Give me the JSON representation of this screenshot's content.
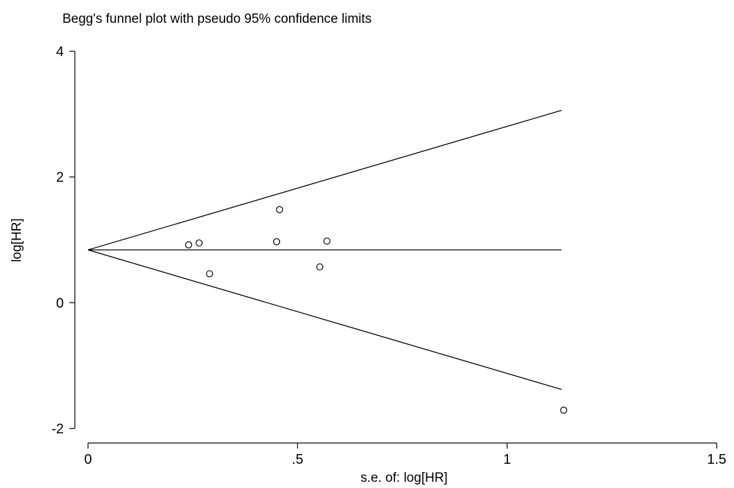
{
  "chart_data": {
    "type": "scatter",
    "title": "Begg's funnel plot with pseudo 95% confidence limits",
    "xlabel": "s.e. of: log[HR]",
    "ylabel": "log[HR]",
    "xlim": [
      0,
      1.5
    ],
    "ylim": [
      -2,
      4
    ],
    "xticks": [
      {
        "value": 0,
        "label": "0"
      },
      {
        "value": 0.5,
        "label": ".5"
      },
      {
        "value": 1,
        "label": "1"
      },
      {
        "value": 1.5,
        "label": "1.5"
      }
    ],
    "yticks": [
      {
        "value": -2,
        "label": "-2"
      },
      {
        "value": 0,
        "label": "0"
      },
      {
        "value": 2,
        "label": "2"
      },
      {
        "value": 4,
        "label": "4"
      }
    ],
    "pooled_estimate": 0.84,
    "limit_se_max": 1.13,
    "upper_limit_end": 3.06,
    "lower_limit_end": -1.38,
    "points": [
      {
        "x": 0.24,
        "y": 0.92
      },
      {
        "x": 0.265,
        "y": 0.95
      },
      {
        "x": 0.29,
        "y": 0.46
      },
      {
        "x": 0.45,
        "y": 0.97
      },
      {
        "x": 0.457,
        "y": 1.48
      },
      {
        "x": 0.553,
        "y": 0.57
      },
      {
        "x": 0.57,
        "y": 0.98
      },
      {
        "x": 1.135,
        "y": -1.71
      }
    ],
    "grid": false,
    "colors": {
      "stroke": "#000000",
      "background": "#ffffff"
    }
  }
}
